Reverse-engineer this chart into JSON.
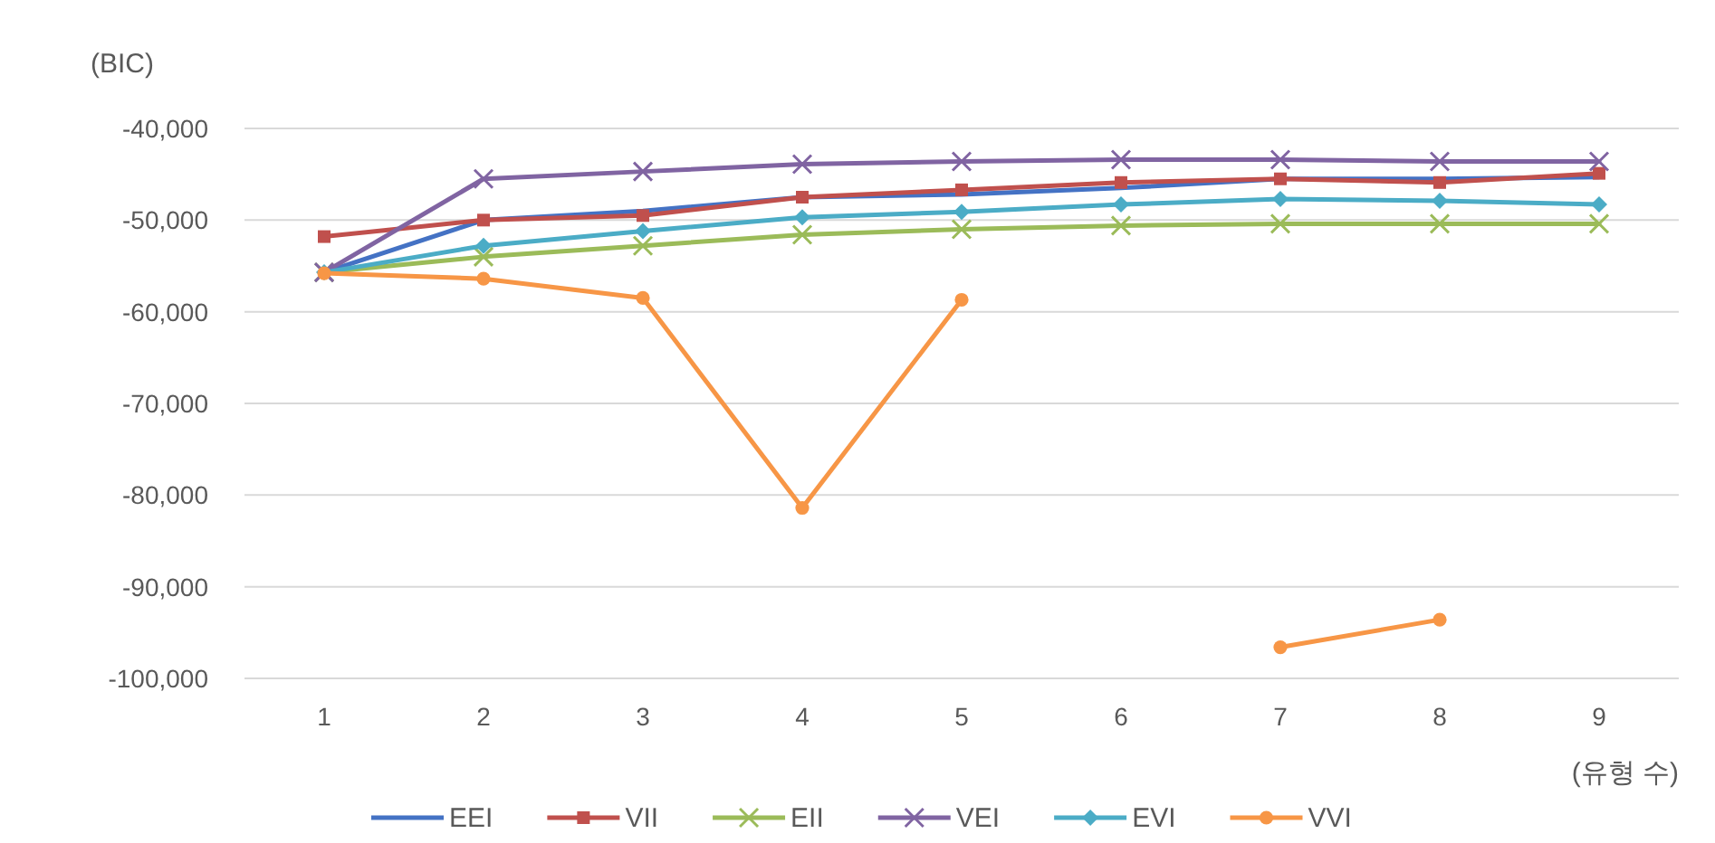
{
  "chart_data": {
    "type": "line",
    "ylabel": "(BIC)",
    "xlabel": "(유형 수)",
    "categories": [
      "1",
      "2",
      "3",
      "4",
      "5",
      "6",
      "7",
      "8",
      "9"
    ],
    "ylim": [
      -100000,
      -40000
    ],
    "yticks": [
      {
        "value": -100000,
        "label": "-100,000"
      },
      {
        "value": -90000,
        "label": "-90,000"
      },
      {
        "value": -80000,
        "label": "-80,000"
      },
      {
        "value": -70000,
        "label": "-70,000"
      },
      {
        "value": -60000,
        "label": "-60,000"
      },
      {
        "value": -50000,
        "label": "-50,000"
      },
      {
        "value": -40000,
        "label": "-40,000"
      }
    ],
    "grid": "y",
    "legend": "bottom",
    "series": [
      {
        "name": "EEI",
        "color": "#4472c4",
        "marker": "none",
        "values": [
          -55700,
          -50000,
          -49000,
          -47500,
          -47200,
          -46500,
          -45500,
          -45500,
          -45300
        ]
      },
      {
        "name": "VII",
        "color": "#c0504d",
        "marker": "square",
        "values": [
          -51800,
          -50000,
          -49500,
          -47500,
          -46700,
          -45900,
          -45500,
          -45900,
          -44900
        ]
      },
      {
        "name": "EII",
        "color": "#9bbb59",
        "marker": "cross",
        "values": [
          -55700,
          -54000,
          -52800,
          -51600,
          -51000,
          -50600,
          -50400,
          -50400,
          -50400
        ]
      },
      {
        "name": "VEI",
        "color": "#8064a2",
        "marker": "cross",
        "values": [
          -55700,
          -45500,
          -44700,
          -43900,
          -43600,
          -43400,
          -43400,
          -43600,
          -43600
        ]
      },
      {
        "name": "EVI",
        "color": "#4bacc6",
        "marker": "diamond",
        "values": [
          -55700,
          -52800,
          -51200,
          -49700,
          -49100,
          -48300,
          -47700,
          -47900,
          -48300
        ]
      },
      {
        "name": "VVI",
        "color": "#f79646",
        "marker": "circle",
        "values": [
          -55800,
          -56400,
          -58500,
          -81400,
          -58700,
          null,
          -96600,
          -93600,
          null
        ]
      }
    ]
  }
}
